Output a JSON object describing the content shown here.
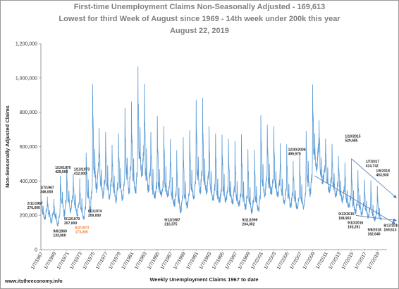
{
  "chart_data": {
    "type": "line",
    "title_lines": [
      "First-time Unemployment Claims  Non-Seasonally Adjusted - 169,613",
      "Lowest for third Week of August since 1969 - 14th week under 200k this year",
      "August 22, 2019"
    ],
    "xlabel": "Weekly Unemployment Claims 1967 to date",
    "ylabel": "Non-Seasonally Adjusted Claims",
    "ylim": [
      0,
      1200000
    ],
    "yticks": [
      0,
      200000,
      400000,
      600000,
      800000,
      1000000,
      1200000
    ],
    "ytick_labels": [
      "0",
      "200,000",
      "400,000",
      "600,000",
      "800,000",
      "1,000,000",
      "1,200,000"
    ],
    "xlim": [
      1967.0,
      2020.5
    ],
    "xtick_labels": [
      "1/7/1967",
      "1/7/1969",
      "1/7/1971",
      "1/7/1973",
      "1/7/1975",
      "1/7/1977",
      "1/7/1979",
      "1/7/1981",
      "1/7/1983",
      "1/7/1985",
      "1/7/1987",
      "1/7/1989",
      "1/7/1991",
      "1/7/1993",
      "1/7/1995",
      "1/7/1997",
      "1/7/1999",
      "1/7/2001",
      "1/7/2003",
      "1/7/2005",
      "1/7/2007",
      "1/7/2009",
      "1/7/2011",
      "1/7/2013",
      "1/7/2015",
      "1/7/2017",
      "1/7/2019"
    ],
    "grid": false,
    "series": [
      {
        "color": "#5b9bd5",
        "annual": [
          {
            "year": 1967,
            "low": 170000,
            "mid": 230000,
            "peak": 345000
          },
          {
            "year": 1968,
            "low": 150000,
            "mid": 210000,
            "peak": 310000
          },
          {
            "year": 1969,
            "low": 135000,
            "mid": 200000,
            "peak": 290000
          },
          {
            "year": 1970,
            "low": 185000,
            "mid": 280000,
            "peak": 429000
          },
          {
            "year": 1971,
            "low": 210000,
            "mid": 300000,
            "peak": 470000
          },
          {
            "year": 1972,
            "low": 190000,
            "mid": 270000,
            "peak": 430000
          },
          {
            "year": 1973,
            "low": 173000,
            "mid": 245000,
            "peak": 412000
          },
          {
            "year": 1974,
            "low": 209000,
            "mid": 330000,
            "peak": 580000
          },
          {
            "year": 1975,
            "low": 330000,
            "mid": 480000,
            "peak": 970000
          },
          {
            "year": 1976,
            "low": 290000,
            "mid": 400000,
            "peak": 700000
          },
          {
            "year": 1977,
            "low": 280000,
            "mid": 390000,
            "peak": 700000
          },
          {
            "year": 1978,
            "low": 270000,
            "mid": 370000,
            "peak": 620000
          },
          {
            "year": 1979,
            "low": 280000,
            "mid": 380000,
            "peak": 680000
          },
          {
            "year": 1980,
            "low": 320000,
            "mid": 470000,
            "peak": 820000
          },
          {
            "year": 1981,
            "low": 320000,
            "mid": 440000,
            "peak": 840000
          },
          {
            "year": 1982,
            "low": 420000,
            "mid": 560000,
            "peak": 1070000
          },
          {
            "year": 1983,
            "low": 330000,
            "mid": 450000,
            "peak": 980000
          },
          {
            "year": 1984,
            "low": 290000,
            "mid": 370000,
            "peak": 700000
          },
          {
            "year": 1985,
            "low": 300000,
            "mid": 380000,
            "peak": 770000
          },
          {
            "year": 1986,
            "low": 300000,
            "mid": 380000,
            "peak": 720000
          },
          {
            "year": 1987,
            "low": 250000,
            "mid": 330000,
            "peak": 640000
          },
          {
            "year": 1988,
            "low": 210000,
            "mid": 300000,
            "peak": 590000
          },
          {
            "year": 1989,
            "low": 240000,
            "mid": 320000,
            "peak": 650000
          },
          {
            "year": 1990,
            "low": 290000,
            "mid": 380000,
            "peak": 700000
          },
          {
            "year": 1991,
            "low": 320000,
            "mid": 440000,
            "peak": 880000
          },
          {
            "year": 1992,
            "low": 320000,
            "mid": 420000,
            "peak": 880000
          },
          {
            "year": 1993,
            "low": 280000,
            "mid": 360000,
            "peak": 710000
          },
          {
            "year": 1994,
            "low": 270000,
            "mid": 340000,
            "peak": 690000
          },
          {
            "year": 1995,
            "low": 270000,
            "mid": 350000,
            "peak": 660000
          },
          {
            "year": 1996,
            "low": 260000,
            "mid": 340000,
            "peak": 640000
          },
          {
            "year": 1997,
            "low": 250000,
            "mid": 320000,
            "peak": 620000
          },
          {
            "year": 1998,
            "low": 230000,
            "mid": 310000,
            "peak": 680000
          },
          {
            "year": 1999,
            "low": 204000,
            "mid": 290000,
            "peak": 600000
          },
          {
            "year": 2000,
            "low": 220000,
            "mid": 300000,
            "peak": 600000
          },
          {
            "year": 2001,
            "low": 300000,
            "mid": 400000,
            "peak": 800000
          },
          {
            "year": 2002,
            "low": 320000,
            "mid": 400000,
            "peak": 740000
          },
          {
            "year": 2003,
            "low": 300000,
            "mid": 390000,
            "peak": 720000
          },
          {
            "year": 2004,
            "low": 260000,
            "mid": 340000,
            "peak": 640000
          },
          {
            "year": 2005,
            "low": 240000,
            "mid": 320000,
            "peak": 610000
          },
          {
            "year": 2006,
            "low": 230000,
            "mid": 300000,
            "peak": 500000
          },
          {
            "year": 2007,
            "low": 230000,
            "mid": 310000,
            "peak": 560000
          },
          {
            "year": 2008,
            "low": 300000,
            "mid": 420000,
            "peak": 700000
          },
          {
            "year": 2009,
            "low": 450000,
            "mid": 580000,
            "peak": 960000
          },
          {
            "year": 2010,
            "low": 380000,
            "mid": 470000,
            "peak": 760000
          },
          {
            "year": 2011,
            "low": 330000,
            "mid": 410000,
            "peak": 650000
          },
          {
            "year": 2012,
            "low": 300000,
            "mid": 380000,
            "peak": 600000
          },
          {
            "year": 2013,
            "low": 270000,
            "mid": 350000,
            "peak": 560000
          },
          {
            "year": 2014,
            "low": 240000,
            "mid": 300000,
            "peak": 500000
          },
          {
            "year": 2015,
            "low": 199000,
            "mid": 270000,
            "peak": 530000
          },
          {
            "year": 2016,
            "low": 193000,
            "mid": 260000,
            "peak": 460000
          },
          {
            "year": 2017,
            "low": 180000,
            "mid": 240000,
            "peak": 415000
          },
          {
            "year": 2018,
            "low": 163000,
            "mid": 220000,
            "peak": 404000
          },
          {
            "year": 2019,
            "low": 169613,
            "mid": 210000,
            "peak": 370000
          }
        ]
      }
    ],
    "annotations": [
      {
        "x": 1967.9,
        "y": 346000,
        "lines": [
          "1/7/1967",
          "346,000"
        ],
        "label_x": 1966.9,
        "label_y": 355000,
        "color": "#222222"
      },
      {
        "x": 1967.1,
        "y": 276000,
        "lines": [
          "2/11/1967",
          "276,000"
        ],
        "label_x": 1964.9,
        "label_y": 262000,
        "color": "#222222"
      },
      {
        "x": 1969.7,
        "y": 133000,
        "lines": [
          "9/6/1969",
          "133,000"
        ],
        "label_x": 1968.9,
        "label_y": 100000,
        "color": "#222222"
      },
      {
        "x": 1970.0,
        "y": 429000,
        "lines": [
          "1/10/1970",
          "429,000"
        ],
        "label_x": 1969.2,
        "label_y": 470000,
        "color": "#222222"
      },
      {
        "x": 1970.7,
        "y": 207000,
        "lines": [
          "9/12/1970",
          "207,000"
        ],
        "label_x": 1970.6,
        "label_y": 171000,
        "color": "#222222"
      },
      {
        "x": 1973.0,
        "y": 412000,
        "lines": [
          "1/13/1973",
          "412,000"
        ],
        "label_x": 1972.1,
        "label_y": 460000,
        "color": "#222222"
      },
      {
        "x": 1973.4,
        "y": 173000,
        "lines": [
          "6/2/1973",
          "173,000"
        ],
        "label_x": 1972.3,
        "label_y": 120000,
        "color": "#ed7d31"
      },
      {
        "x": 1974.4,
        "y": 209000,
        "lines": [
          "6/1/1974",
          "209,000"
        ],
        "label_x": 1974.3,
        "label_y": 218000,
        "color": "#222222"
      },
      {
        "x": 1987.7,
        "y": 210375,
        "lines": [
          "9/12/1987",
          "210,375"
        ],
        "label_x": 1986.1,
        "label_y": 166000,
        "color": "#222222"
      },
      {
        "x": 1999.7,
        "y": 204302,
        "lines": [
          "9/11/1999",
          "204,302"
        ],
        "label_x": 1998.1,
        "label_y": 166000,
        "color": "#222222"
      },
      {
        "x": 2006.9,
        "y": 499979,
        "lines": [
          "12/30/2006",
          "499,979"
        ],
        "label_x": 2005.2,
        "label_y": 575000,
        "color": "#222222"
      },
      {
        "x": 2015.0,
        "y": 529685,
        "lines": [
          "1/10/2015",
          "529,685"
        ],
        "label_x": 2014.0,
        "label_y": 654000,
        "color": "#222222"
      },
      {
        "x": 2015.7,
        "y": 198903,
        "lines": [
          "9/12/2015",
          "198,903"
        ],
        "label_x": 2013.0,
        "label_y": 200000,
        "color": "#222222"
      },
      {
        "x": 2016.7,
        "y": 193291,
        "lines": [
          "9/10/2016",
          "193,291"
        ],
        "label_x": 2014.4,
        "label_y": 150000,
        "color": "#222222"
      },
      {
        "x": 2017.0,
        "y": 414742,
        "lines": [
          "1/7/2017",
          "414,742"
        ],
        "label_x": 2017.2,
        "label_y": 505000,
        "color": "#222222"
      },
      {
        "x": 2018.0,
        "y": 403930,
        "lines": [
          "1/6/2018",
          "403,930"
        ],
        "label_x": 2018.8,
        "label_y": 452000,
        "color": "#222222"
      },
      {
        "x": 2018.7,
        "y": 162640,
        "lines": [
          "9/8/2018",
          "162,640"
        ],
        "label_x": 2017.5,
        "label_y": 108000,
        "color": "#222222"
      },
      {
        "x": 2019.6,
        "y": 169613,
        "lines": [
          "8/17/2019",
          "169,613"
        ],
        "label_x": 2020.0,
        "label_y": 133000,
        "color": "#222222"
      }
    ],
    "trend_arrows": [
      {
        "from": [
          2015.0,
          529685
        ],
        "to": [
          2022.0,
          300000
        ]
      },
      {
        "from": [
          2015.7,
          198903
        ],
        "to": [
          2022.0,
          170000
        ]
      },
      {
        "from": [
          2009.3,
          430000
        ],
        "to": [
          2021.8,
          150000
        ]
      }
    ]
  },
  "footer": "www.itstheeconomy.info"
}
